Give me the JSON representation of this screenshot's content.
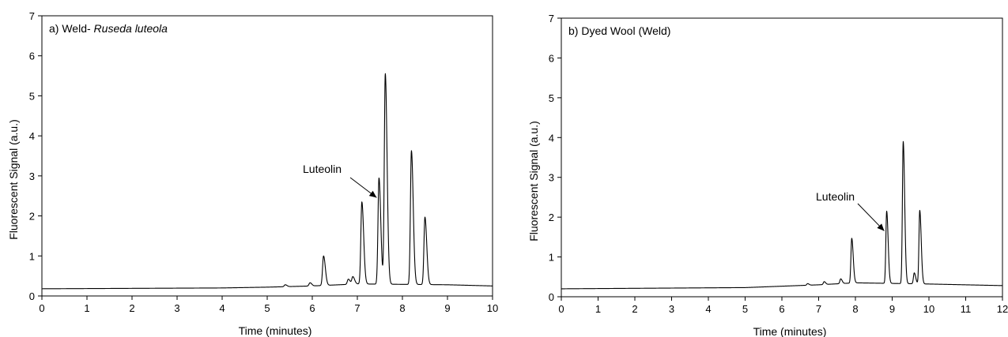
{
  "chart_data": [
    {
      "type": "line",
      "title_prefix": "a) Weld- ",
      "title_italic": "Ruseda luteola",
      "xlabel": "Time (minutes)",
      "ylabel": "Fluorescent Signal (a.u.)",
      "xlim": [
        0,
        10
      ],
      "ylim": [
        0,
        7
      ],
      "xticks": [
        0,
        1,
        2,
        3,
        4,
        5,
        6,
        7,
        8,
        9,
        10
      ],
      "yticks": [
        0,
        1,
        2,
        3,
        4,
        5,
        6,
        7
      ],
      "grid": false,
      "baseline": [
        [
          0,
          0.18
        ],
        [
          4.0,
          0.2
        ],
        [
          5.0,
          0.22
        ],
        [
          6.0,
          0.25
        ],
        [
          7.0,
          0.3
        ],
        [
          9.0,
          0.28
        ],
        [
          10.0,
          0.25
        ]
      ],
      "peaks": [
        {
          "x": 5.4,
          "y": 0.28
        },
        {
          "x": 5.95,
          "y": 0.33
        },
        {
          "x": 6.25,
          "y": 1.0
        },
        {
          "x": 6.8,
          "y": 0.42
        },
        {
          "x": 6.9,
          "y": 0.48
        },
        {
          "x": 7.1,
          "y": 2.35
        },
        {
          "x": 7.48,
          "y": 2.95
        },
        {
          "x": 7.62,
          "y": 5.55
        },
        {
          "x": 8.2,
          "y": 3.63
        },
        {
          "x": 8.5,
          "y": 1.97
        }
      ],
      "annotations": [
        {
          "text": "Luteolin",
          "x": 7.48,
          "y": 2.95
        }
      ]
    },
    {
      "type": "line",
      "title_prefix": "b) Dyed Wool (Weld)",
      "title_italic": "",
      "xlabel": "Time (minutes)",
      "ylabel": "Fluorescent Signal (a.u.)",
      "xlim": [
        0,
        12
      ],
      "ylim": [
        0,
        7
      ],
      "xticks": [
        0,
        1,
        2,
        3,
        4,
        5,
        6,
        7,
        8,
        9,
        10,
        11,
        12
      ],
      "yticks": [
        0,
        1,
        2,
        3,
        4,
        5,
        6,
        7
      ],
      "grid": false,
      "baseline": [
        [
          0,
          0.2
        ],
        [
          5.0,
          0.23
        ],
        [
          7.0,
          0.3
        ],
        [
          8.0,
          0.35
        ],
        [
          10.0,
          0.32
        ],
        [
          12.0,
          0.28
        ]
      ],
      "peaks": [
        {
          "x": 6.7,
          "y": 0.33
        },
        {
          "x": 7.15,
          "y": 0.38
        },
        {
          "x": 7.6,
          "y": 0.45
        },
        {
          "x": 7.9,
          "y": 1.47
        },
        {
          "x": 8.85,
          "y": 2.15
        },
        {
          "x": 9.3,
          "y": 3.9
        },
        {
          "x": 9.6,
          "y": 0.6
        },
        {
          "x": 9.75,
          "y": 2.17
        }
      ],
      "annotations": [
        {
          "text": "Luteolin",
          "x": 8.85,
          "y": 2.15
        }
      ]
    }
  ]
}
